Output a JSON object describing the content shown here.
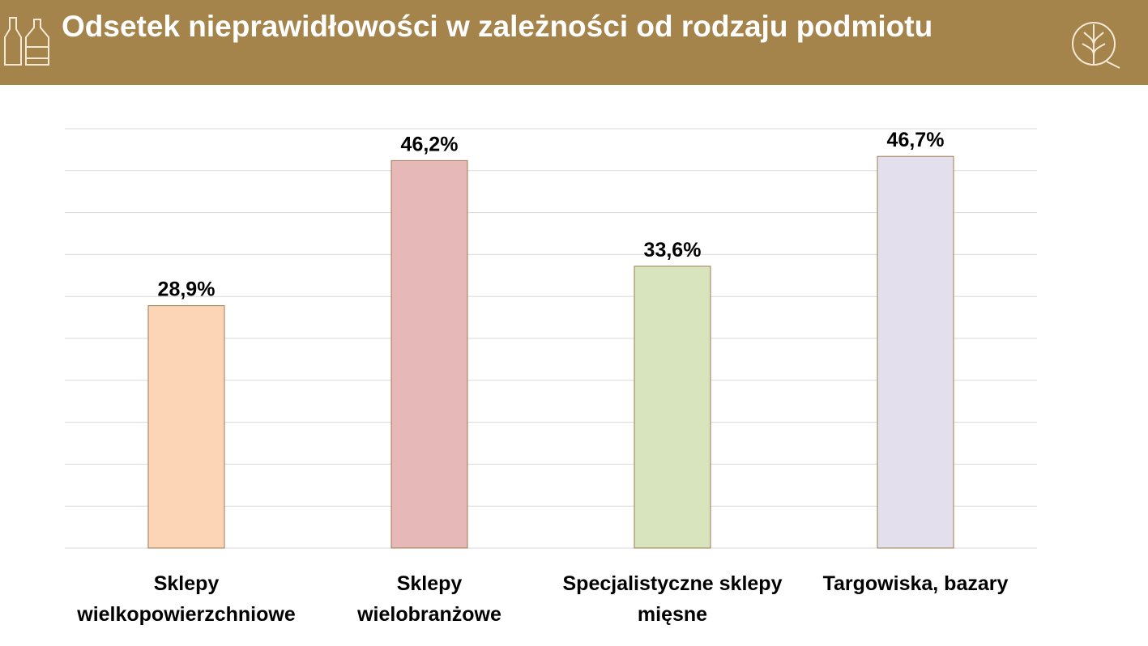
{
  "chart_data": {
    "type": "bar",
    "title": "Odsetek nieprawidłowości w zależności od rodzaju podmiotu",
    "categories": [
      "Sklepy\nwielkopowierzchniowe",
      "Sklepy\nwielobranżowe",
      "Specjalistyczne sklepy\nmięsne",
      "Targowiska, bazary"
    ],
    "values": [
      28.9,
      46.2,
      33.6,
      46.7
    ],
    "value_labels": [
      "28,9%",
      "46,2%",
      "33,6%",
      "46,7%"
    ],
    "colors": [
      "#fbd5b5",
      "#e6b9b8",
      "#d7e4bd",
      "#e4dfec"
    ],
    "ylim": [
      0,
      50
    ],
    "yticks": [
      0,
      5,
      10,
      15,
      20,
      25,
      30,
      35,
      40,
      45,
      50
    ],
    "grid": true
  }
}
